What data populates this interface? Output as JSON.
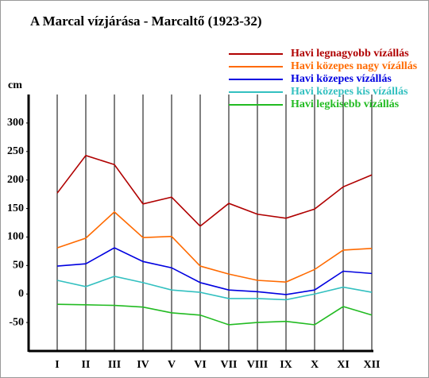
{
  "chart_data": {
    "type": "line",
    "title": "A Marcal vízjárása - Marcaltő (1923-32)",
    "y_label": "cm",
    "categories": [
      "I",
      "II",
      "III",
      "IV",
      "V",
      "VI",
      "VII",
      "VIII",
      "IX",
      "X",
      "XI",
      "XII"
    ],
    "series": [
      {
        "name": "Havi legnagyobb vízállás",
        "color": "#b00000",
        "values": [
          177,
          243,
          227,
          158,
          170,
          119,
          159,
          140,
          133,
          149,
          188,
          209
        ]
      },
      {
        "name": "Havi közepes nagy vízállás",
        "color": "#ff6a00",
        "values": [
          81,
          98,
          144,
          99,
          101,
          49,
          35,
          24,
          21,
          43,
          77,
          80
        ]
      },
      {
        "name": "Havi közepes vízállás",
        "color": "#0000e0",
        "values": [
          49,
          53,
          81,
          57,
          46,
          20,
          7,
          4,
          -1,
          7,
          40,
          36
        ]
      },
      {
        "name": "Havi közepes kis vízállás",
        "color": "#33c0c0",
        "values": [
          24,
          13,
          31,
          20,
          7,
          3,
          -8,
          -8,
          -10,
          0,
          12,
          3
        ]
      },
      {
        "name": "Havi legkisebb vízállás",
        "color": "#22bb22",
        "values": [
          -18,
          -19,
          -20,
          -23,
          -33,
          -37,
          -54,
          -50,
          -48,
          -54,
          -22,
          -37
        ]
      }
    ],
    "ylim": [
      -100,
      350
    ],
    "yticks": [
      -50,
      0,
      50,
      100,
      150,
      200,
      250,
      300
    ],
    "grid": true,
    "legend": "top-right"
  }
}
